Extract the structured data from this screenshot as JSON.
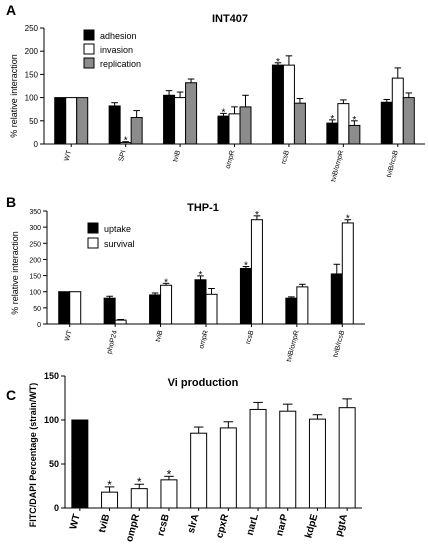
{
  "chart_data": [
    {
      "panel_label": "A",
      "type": "bar",
      "title": "INT407",
      "ylabel": "% relative interaction",
      "xlabel": "",
      "ylim": [
        0,
        250
      ],
      "yticks": [
        0,
        50,
        100,
        150,
        200,
        250
      ],
      "grid": false,
      "legend_position": "top-left",
      "categories": [
        "WT",
        "SPI",
        "tviB",
        "ompR",
        "rcsB",
        "tviB/ompR",
        "tviB/rcsB"
      ],
      "series": [
        {
          "name": "adhesion",
          "color": "#000000",
          "values": [
            100,
            82,
            105,
            60,
            170,
            45,
            90
          ],
          "errors": [
            0,
            7,
            10,
            6,
            5,
            7,
            6
          ],
          "significant": [
            false,
            false,
            false,
            true,
            true,
            true,
            false
          ]
        },
        {
          "name": "invasion",
          "color": "#ffffff",
          "values": [
            100,
            3,
            100,
            65,
            170,
            87,
            142
          ],
          "errors": [
            0,
            2,
            12,
            15,
            20,
            8,
            22
          ],
          "significant": [
            false,
            true,
            false,
            false,
            false,
            false,
            false
          ]
        },
        {
          "name": "replication",
          "color": "#8c8c8c",
          "values": [
            100,
            57,
            132,
            80,
            88,
            40,
            100
          ],
          "errors": [
            0,
            15,
            8,
            25,
            10,
            10,
            10
          ],
          "significant": [
            false,
            false,
            false,
            false,
            false,
            true,
            false
          ]
        }
      ]
    },
    {
      "panel_label": "B",
      "type": "bar",
      "title": "THP-1",
      "ylabel": "% relative interaction",
      "xlabel": "",
      "ylim": [
        0,
        350
      ],
      "yticks": [
        0,
        50,
        100,
        150,
        200,
        250,
        300,
        350
      ],
      "grid": false,
      "legend_position": "top-left",
      "categories": [
        "WT",
        "phoP24",
        "tviB",
        "ompR",
        "rcsB",
        "tviB/ompR",
        "tviB/rcsB"
      ],
      "series": [
        {
          "name": "uptake",
          "color": "#000000",
          "values": [
            100,
            80,
            90,
            137,
            172,
            80,
            155
          ],
          "errors": [
            0,
            6,
            6,
            12,
            6,
            4,
            30
          ],
          "significant": [
            false,
            false,
            false,
            true,
            true,
            false,
            false
          ]
        },
        {
          "name": "survival",
          "color": "#ffffff",
          "values": [
            100,
            12,
            120,
            92,
            323,
            115,
            313
          ],
          "errors": [
            0,
            2,
            6,
            18,
            12,
            8,
            10
          ],
          "significant": [
            false,
            false,
            true,
            false,
            true,
            false,
            true
          ]
        }
      ]
    },
    {
      "panel_label": "C",
      "type": "bar",
      "title": "Vi production",
      "ylabel": "FITC/DAPI Percentage (strain/WT)",
      "xlabel": "",
      "ylim": [
        0,
        150
      ],
      "yticks": [
        0,
        50,
        100,
        150
      ],
      "grid": false,
      "categories": [
        "WT",
        "tviB",
        "ompR",
        "rcsB",
        "slrA",
        "cpxR",
        "narL",
        "narP",
        "kdpE",
        "pgtA"
      ],
      "series": [
        {
          "name": "",
          "values": [
            100,
            18,
            22,
            32,
            85,
            91,
            112,
            110,
            101,
            114
          ],
          "errors": [
            0,
            6,
            5,
            4,
            7,
            7,
            8,
            8,
            5,
            10
          ],
          "significant": [
            false,
            true,
            true,
            true,
            false,
            false,
            false,
            false,
            false,
            false
          ]
        }
      ],
      "bar_colors": [
        "#000000",
        "#ffffff",
        "#ffffff",
        "#ffffff",
        "#ffffff",
        "#ffffff",
        "#ffffff",
        "#ffffff",
        "#ffffff",
        "#ffffff"
      ]
    }
  ]
}
